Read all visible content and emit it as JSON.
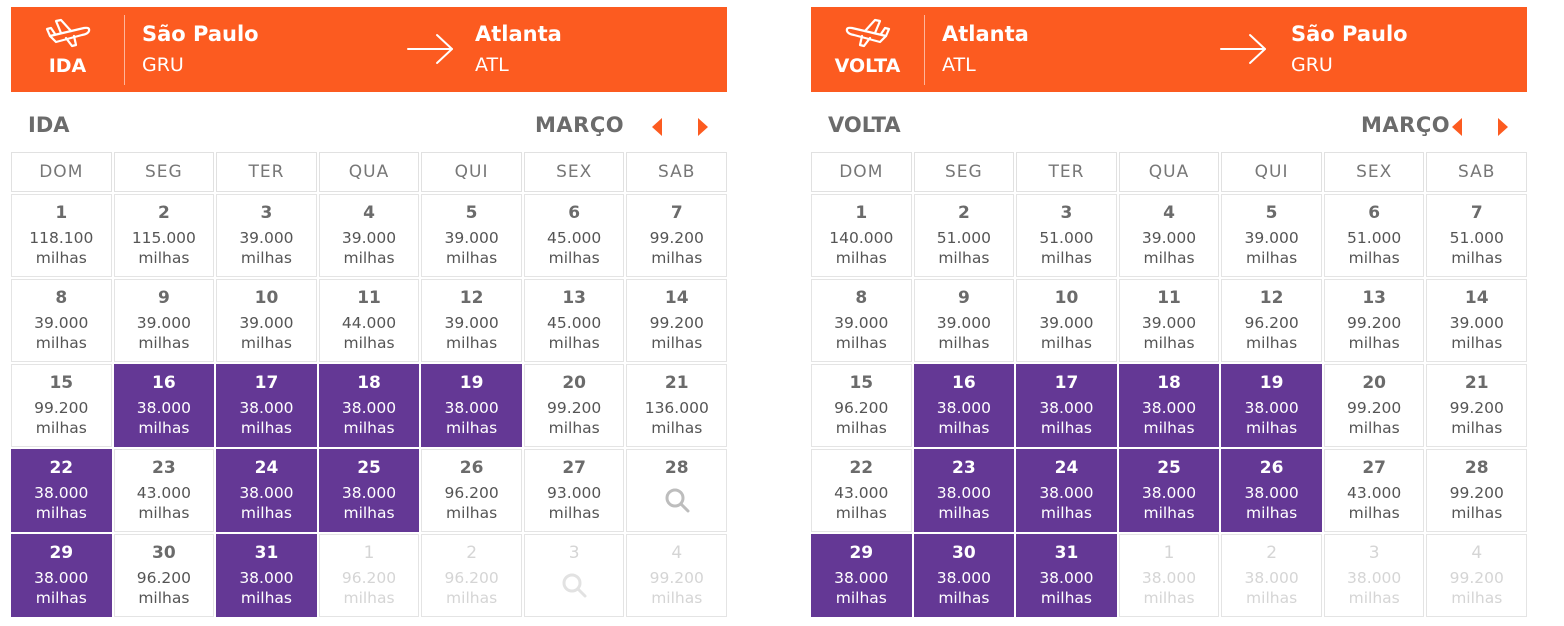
{
  "colors": {
    "accent": "#fc5b20",
    "selected": "#643895"
  },
  "ida": {
    "leg_label": "IDA",
    "origin": {
      "city": "São Paulo",
      "code": "GRU"
    },
    "destination": {
      "city": "Atlanta",
      "code": "ATL"
    },
    "calendar_title": "IDA",
    "month": "MARÇO",
    "weekdays": [
      "DOM",
      "SEG",
      "TER",
      "QUA",
      "QUI",
      "SEX",
      "SAB"
    ],
    "unit": "milhas",
    "weeks": [
      [
        {
          "day": "1",
          "price": "118.100"
        },
        {
          "day": "2",
          "price": "115.000"
        },
        {
          "day": "3",
          "price": "39.000"
        },
        {
          "day": "4",
          "price": "39.000"
        },
        {
          "day": "5",
          "price": "39.000"
        },
        {
          "day": "6",
          "price": "45.000"
        },
        {
          "day": "7",
          "price": "99.200"
        }
      ],
      [
        {
          "day": "8",
          "price": "39.000"
        },
        {
          "day": "9",
          "price": "39.000"
        },
        {
          "day": "10",
          "price": "39.000"
        },
        {
          "day": "11",
          "price": "44.000"
        },
        {
          "day": "12",
          "price": "39.000"
        },
        {
          "day": "13",
          "price": "45.000"
        },
        {
          "day": "14",
          "price": "99.200"
        }
      ],
      [
        {
          "day": "15",
          "price": "99.200"
        },
        {
          "day": "16",
          "price": "38.000",
          "selected": true
        },
        {
          "day": "17",
          "price": "38.000",
          "selected": true
        },
        {
          "day": "18",
          "price": "38.000",
          "selected": true
        },
        {
          "day": "19",
          "price": "38.000",
          "selected": true
        },
        {
          "day": "20",
          "price": "99.200"
        },
        {
          "day": "21",
          "price": "136.000"
        }
      ],
      [
        {
          "day": "22",
          "price": "38.000",
          "selected": true
        },
        {
          "day": "23",
          "price": "43.000"
        },
        {
          "day": "24",
          "price": "38.000",
          "selected": true
        },
        {
          "day": "25",
          "price": "38.000",
          "selected": true
        },
        {
          "day": "26",
          "price": "96.200"
        },
        {
          "day": "27",
          "price": "93.000"
        },
        {
          "day": "28",
          "search": true
        }
      ],
      [
        {
          "day": "29",
          "price": "38.000",
          "selected": true
        },
        {
          "day": "30",
          "price": "96.200"
        },
        {
          "day": "31",
          "price": "38.000",
          "selected": true
        },
        {
          "day": "1",
          "price": "96.200",
          "outside": true
        },
        {
          "day": "2",
          "price": "96.200",
          "outside": true
        },
        {
          "day": "3",
          "search": true,
          "outside": true
        },
        {
          "day": "4",
          "price": "99.200",
          "outside": true
        }
      ]
    ]
  },
  "volta": {
    "leg_label": "VOLTA",
    "origin": {
      "city": "Atlanta",
      "code": "ATL"
    },
    "destination": {
      "city": "São Paulo",
      "code": "GRU"
    },
    "calendar_title": "VOLTA",
    "month": "MARÇO",
    "weekdays": [
      "DOM",
      "SEG",
      "TER",
      "QUA",
      "QUI",
      "SEX",
      "SAB"
    ],
    "unit": "milhas",
    "weeks": [
      [
        {
          "day": "1",
          "price": "140.000"
        },
        {
          "day": "2",
          "price": "51.000"
        },
        {
          "day": "3",
          "price": "51.000"
        },
        {
          "day": "4",
          "price": "39.000"
        },
        {
          "day": "5",
          "price": "39.000"
        },
        {
          "day": "6",
          "price": "51.000"
        },
        {
          "day": "7",
          "price": "51.000"
        }
      ],
      [
        {
          "day": "8",
          "price": "39.000"
        },
        {
          "day": "9",
          "price": "39.000"
        },
        {
          "day": "10",
          "price": "39.000"
        },
        {
          "day": "11",
          "price": "39.000"
        },
        {
          "day": "12",
          "price": "96.200"
        },
        {
          "day": "13",
          "price": "99.200"
        },
        {
          "day": "14",
          "price": "39.000"
        }
      ],
      [
        {
          "day": "15",
          "price": "96.200"
        },
        {
          "day": "16",
          "price": "38.000",
          "selected": true
        },
        {
          "day": "17",
          "price": "38.000",
          "selected": true
        },
        {
          "day": "18",
          "price": "38.000",
          "selected": true
        },
        {
          "day": "19",
          "price": "38.000",
          "selected": true
        },
        {
          "day": "20",
          "price": "99.200"
        },
        {
          "day": "21",
          "price": "99.200"
        }
      ],
      [
        {
          "day": "22",
          "price": "43.000"
        },
        {
          "day": "23",
          "price": "38.000",
          "selected": true
        },
        {
          "day": "24",
          "price": "38.000",
          "selected": true
        },
        {
          "day": "25",
          "price": "38.000",
          "selected": true
        },
        {
          "day": "26",
          "price": "38.000",
          "selected": true
        },
        {
          "day": "27",
          "price": "43.000"
        },
        {
          "day": "28",
          "price": "99.200"
        }
      ],
      [
        {
          "day": "29",
          "price": "38.000",
          "selected": true
        },
        {
          "day": "30",
          "price": "38.000",
          "selected": true
        },
        {
          "day": "31",
          "price": "38.000",
          "selected": true
        },
        {
          "day": "1",
          "price": "38.000",
          "outside": true
        },
        {
          "day": "2",
          "price": "38.000",
          "outside": true
        },
        {
          "day": "3",
          "price": "38.000",
          "outside": true
        },
        {
          "day": "4",
          "price": "99.200",
          "outside": true
        }
      ]
    ]
  }
}
